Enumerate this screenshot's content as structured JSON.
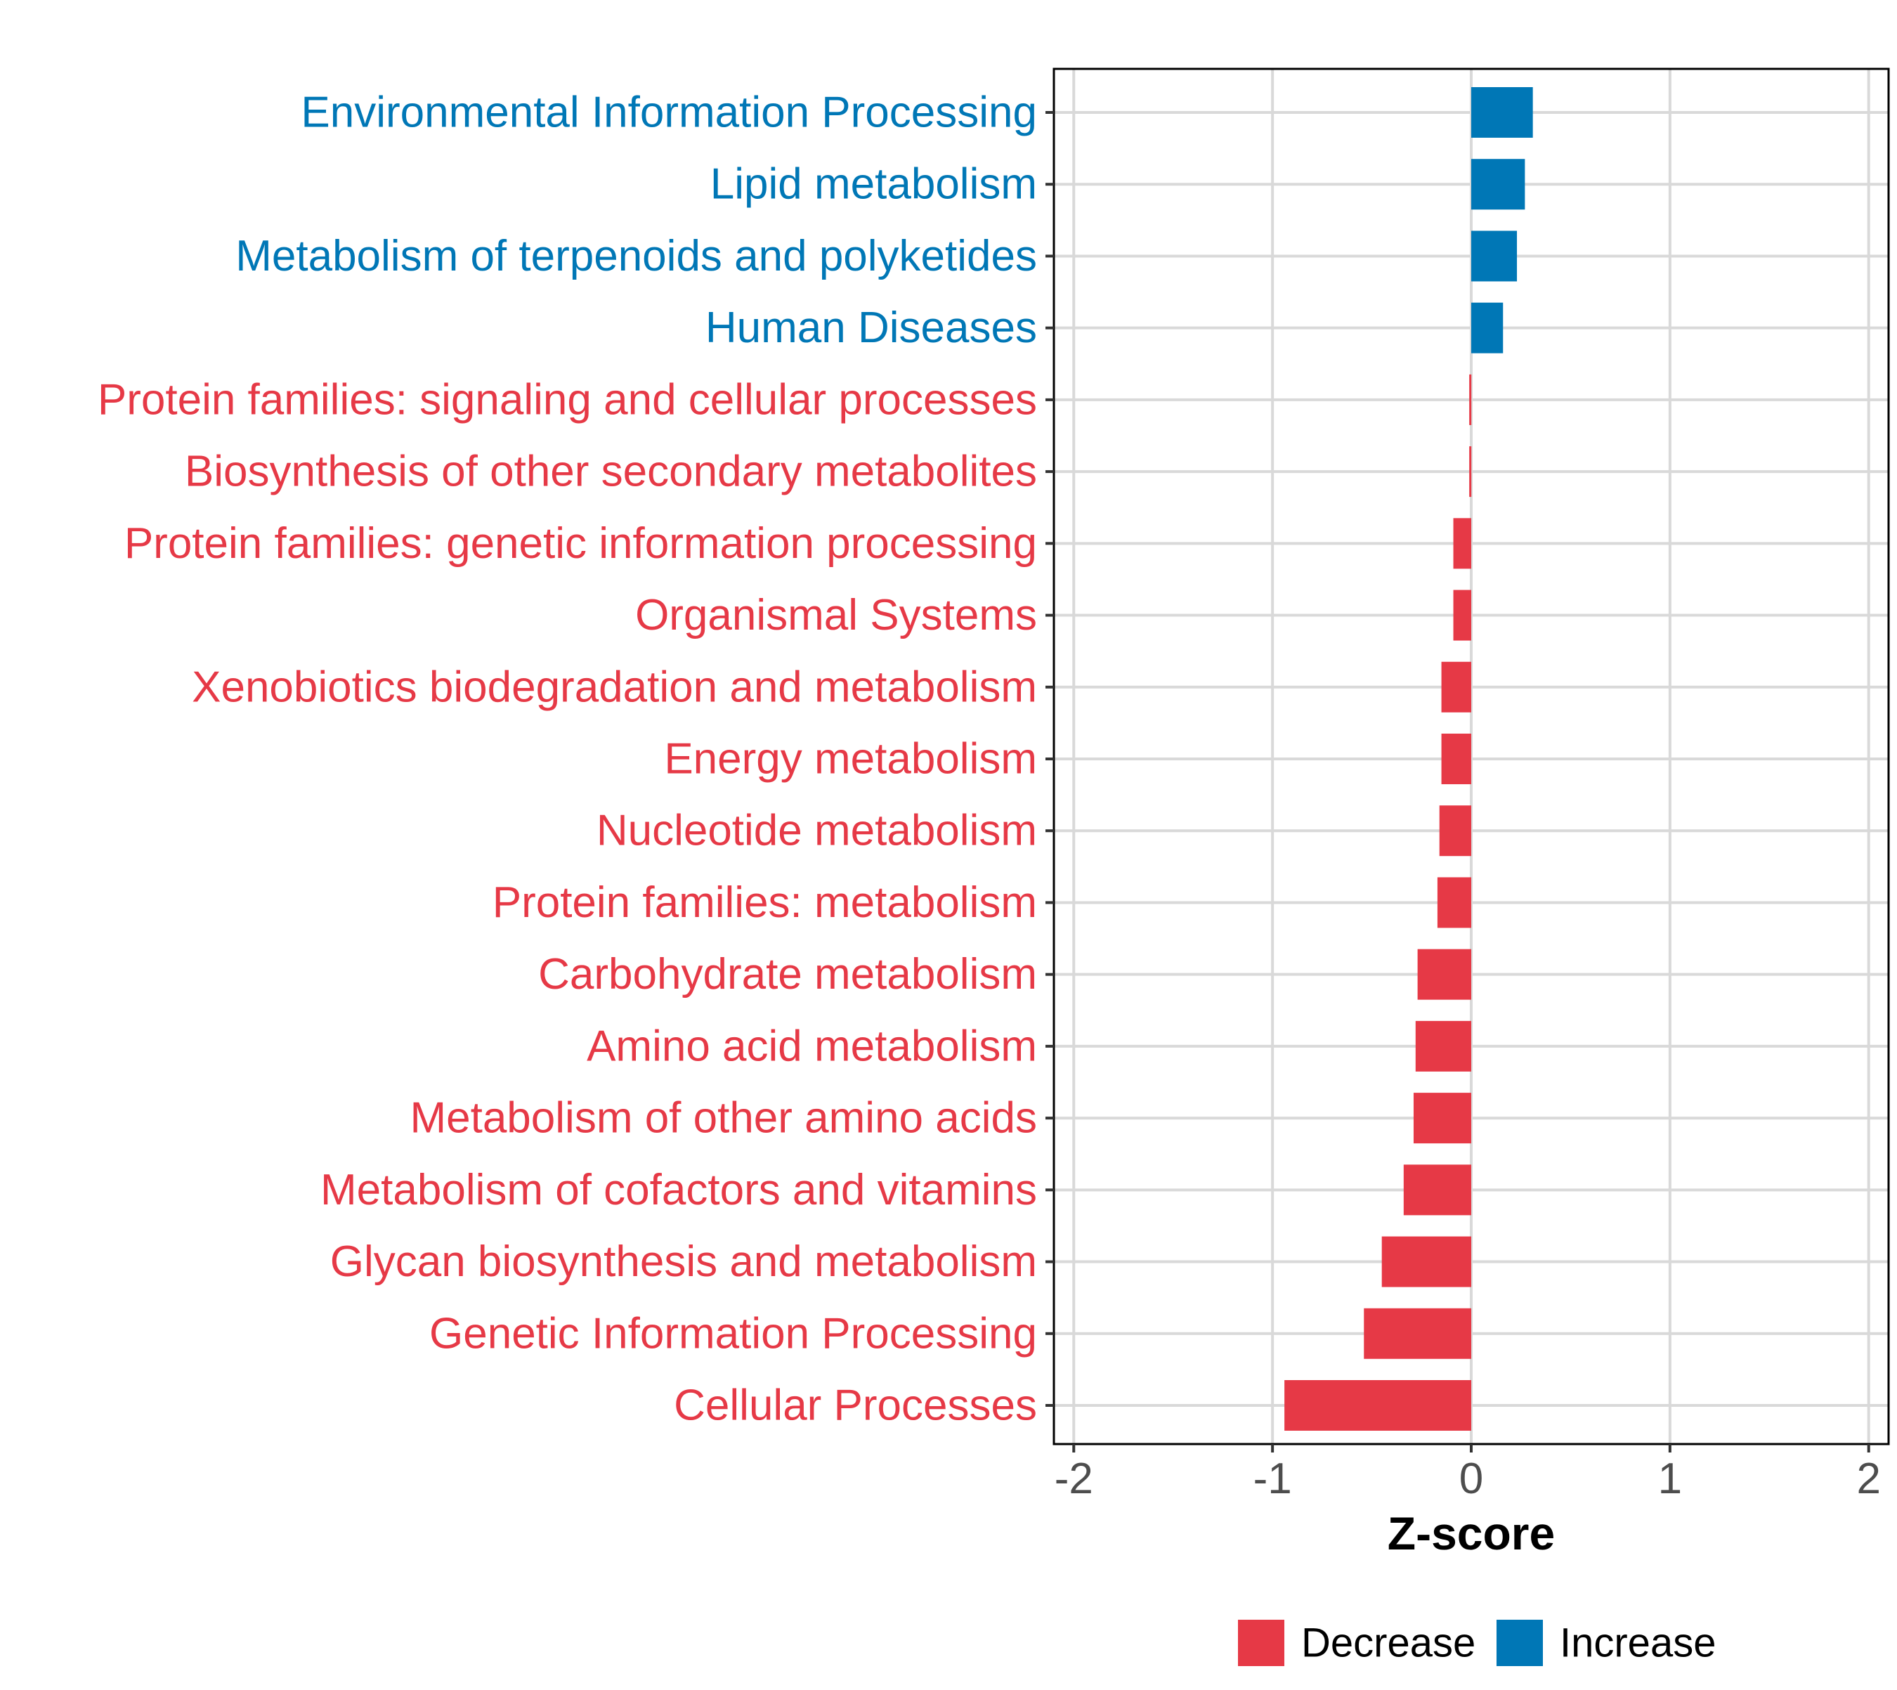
{
  "chart_data": {
    "type": "bar",
    "orientation": "horizontal",
    "title": "",
    "xlabel": "Z-score",
    "ylabel": "",
    "xlim": [
      -2.1,
      2.1
    ],
    "x_ticks": [
      -2,
      -1,
      0,
      1,
      2
    ],
    "x_tick_labels": [
      "-2",
      "-1",
      "0",
      "1",
      "2"
    ],
    "grid": true,
    "legend_position": "bottom",
    "colors": {
      "Decrease": "#E63946",
      "Increase": "#0077B6"
    },
    "categories": [
      "Environmental Information Processing",
      "Lipid metabolism",
      "Metabolism of terpenoids and polyketides",
      "Human Diseases",
      "Protein families: signaling and cellular processes",
      "Biosynthesis of other secondary metabolites",
      "Protein families: genetic information processing",
      "Organismal Systems",
      "Xenobiotics biodegradation and metabolism",
      "Energy metabolism",
      "Nucleotide metabolism",
      "Protein families: metabolism",
      "Carbohydrate metabolism",
      "Amino acid metabolism",
      "Metabolism of other amino acids",
      "Metabolism of cofactors and vitamins",
      "Glycan biosynthesis and metabolism",
      "Genetic Information Processing",
      "Cellular Processes"
    ],
    "values": [
      0.31,
      0.27,
      0.23,
      0.16,
      -0.01,
      -0.01,
      -0.09,
      -0.09,
      -0.15,
      -0.15,
      -0.16,
      -0.17,
      -0.27,
      -0.28,
      -0.29,
      -0.34,
      -0.45,
      -0.54,
      -0.94
    ],
    "groups": [
      "Increase",
      "Increase",
      "Increase",
      "Increase",
      "Decrease",
      "Decrease",
      "Decrease",
      "Decrease",
      "Decrease",
      "Decrease",
      "Decrease",
      "Decrease",
      "Decrease",
      "Decrease",
      "Decrease",
      "Decrease",
      "Decrease",
      "Decrease",
      "Decrease"
    ],
    "legend": [
      {
        "name": "Decrease",
        "color": "#E63946"
      },
      {
        "name": "Increase",
        "color": "#0077B6"
      }
    ]
  }
}
